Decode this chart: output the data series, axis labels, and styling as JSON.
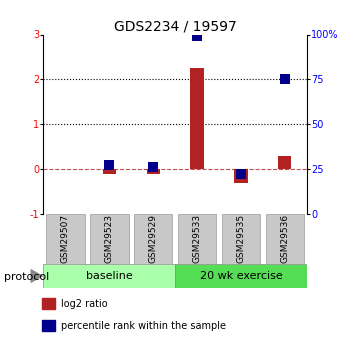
{
  "title": "GDS2234 / 19597",
  "samples": [
    "GSM29507",
    "GSM29523",
    "GSM29529",
    "GSM29533",
    "GSM29535",
    "GSM29536"
  ],
  "log2_ratio": [
    0.0,
    -0.12,
    -0.1,
    2.25,
    -0.32,
    0.3
  ],
  "percentile_rank": [
    null,
    27,
    26,
    99,
    22,
    75
  ],
  "left_ylim": [
    -1,
    3
  ],
  "right_ylim": [
    0,
    100
  ],
  "left_yticks": [
    -1,
    0,
    1,
    2,
    3
  ],
  "right_yticks": [
    0,
    25,
    50,
    75,
    100
  ],
  "right_yticklabels": [
    "0",
    "25",
    "50",
    "75",
    "100%"
  ],
  "dotted_lines": [
    1,
    2
  ],
  "dashed_line_y": 0,
  "bar_color": "#B22222",
  "dot_color": "#00008B",
  "baseline_n": 3,
  "exercise_n": 3,
  "baseline_label": "baseline",
  "exercise_label": "20 wk exercise",
  "protocol_label": "protocol",
  "legend_log2": "log2 ratio",
  "legend_pct": "percentile rank within the sample",
  "sample_box_color": "#C8C8C8",
  "baseline_green": "#AAFFAA",
  "exercise_green": "#55DD55",
  "title_fontsize": 10,
  "tick_fontsize": 7,
  "label_fontsize": 7,
  "bar_width": 0.3
}
